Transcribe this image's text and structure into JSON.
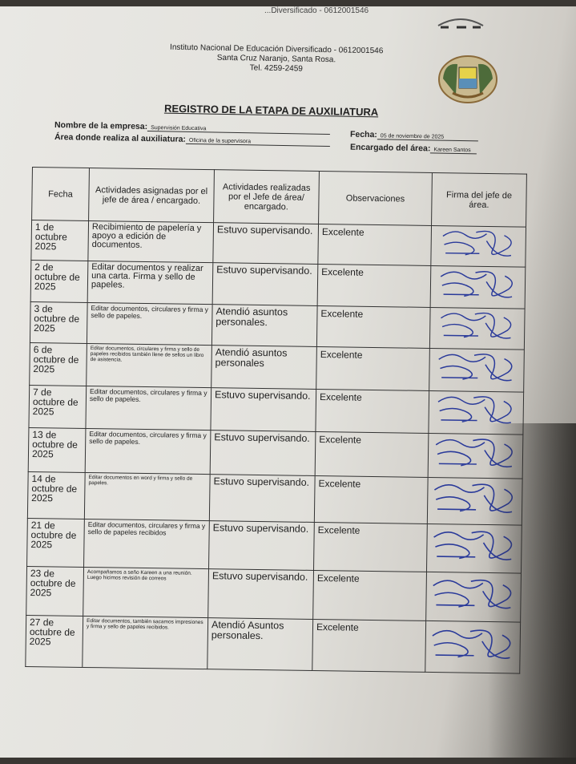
{
  "top_fragment": "...Diversificado - 0612001546",
  "header": {
    "line1": "Instituto  Nacional De Educación Diversificado - 0612001546",
    "line2": "Santa Cruz Naranjo, Santa Rosa.",
    "line3": "Tel. 4259-2459"
  },
  "title": "REGISTRO DE LA ETAPA DE AUXILIATURA",
  "fields": {
    "empresa_label": "Nombre de la empresa:",
    "empresa": "Supervisión Educativa",
    "area_label": "Área donde realiza al auxiliatura:",
    "area": "Oficina de la supervisora",
    "fecha_label": "Fecha:",
    "fecha": "05  de noviembre de 2025",
    "encargado_label": "Encargado del área:",
    "encargado": "Kareen Santos"
  },
  "columns": [
    "Fecha",
    "Actividades asignadas por el jefe de área / encargado.",
    "Actividades realizadas por el Jefe de área/ encargado.",
    "Observaciones",
    "Firma del jefe de área."
  ],
  "rows": [
    {
      "fecha": "1 de octubre 2025",
      "asignadas": "Recibimiento de papelería y apoyo a edición de documentos.",
      "realizadas": "Estuvo supervisando.",
      "obs": "Excelente"
    },
    {
      "fecha": "2 de octubre de 2025",
      "asignadas": "Editar documentos y realizar una carta. Firma y sello de papeles.",
      "realizadas": "Estuvo supervisando.",
      "obs": "Excelente"
    },
    {
      "fecha": "3 de octubre de 2025",
      "asignadas": "Editar documentos, circulares y firma y sello de papeles.",
      "realizadas": "Atendió asuntos personales.",
      "obs": "Excelente"
    },
    {
      "fecha": "6 de octubre de 2025",
      "asignadas": "Editar documentos, circulares y firma y sello de papeles recibidos también llene de sellos un libro de asistencia.",
      "realizadas": "Atendió asuntos personales",
      "obs": "Excelente"
    },
    {
      "fecha": "7 de octubre de 2025",
      "asignadas": "Editar documentos, circulares y firma y sello de papeles.",
      "realizadas": "Estuvo supervisando.",
      "obs": "Excelente"
    },
    {
      "fecha": "13 de octubre de 2025",
      "asignadas": "Editar documentos, circulares y firma y sello de papeles.",
      "realizadas": "Estuvo supervisando.",
      "obs": "Excelente"
    },
    {
      "fecha": "14 de octubre de 2025",
      "asignadas": "Editar documentos en word y firma y sello de papeles.",
      "realizadas": "Estuvo supervisando.",
      "obs": "Excelente"
    },
    {
      "fecha": "21 de octubre de 2025",
      "asignadas": "Editar documentos, circulares y firma y sello de papeles recibidos",
      "realizadas": "Estuvo supervisando.",
      "obs": "Excelente"
    },
    {
      "fecha": "23 de octubre de 2025",
      "asignadas": "Acompañamos a seño Kareen a una reunión. Luego hicimos revisión de correos",
      "realizadas": "Estuvo supervisando.",
      "obs": "Excelente"
    },
    {
      "fecha": "27 de octubre de 2025",
      "asignadas": "Editar documentos, también sacamos impresiones y firma y sello de papeles recibidos.",
      "realizadas": "Atendió Asuntos personales.",
      "obs": "Excelente"
    }
  ]
}
